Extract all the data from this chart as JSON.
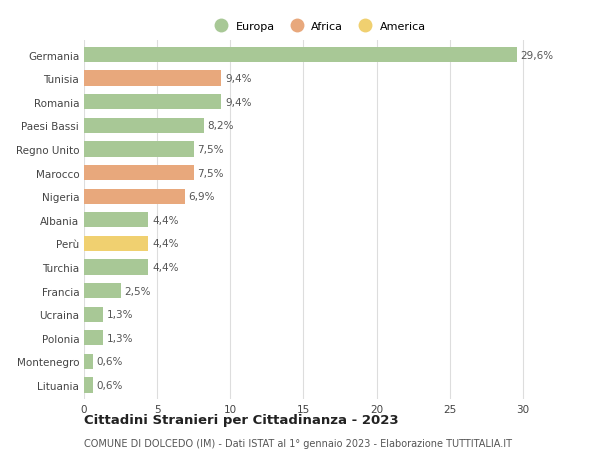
{
  "categories": [
    "Germania",
    "Tunisia",
    "Romania",
    "Paesi Bassi",
    "Regno Unito",
    "Marocco",
    "Nigeria",
    "Albania",
    "Perù",
    "Turchia",
    "Francia",
    "Ucraina",
    "Polonia",
    "Montenegro",
    "Lituania"
  ],
  "values": [
    29.6,
    9.4,
    9.4,
    8.2,
    7.5,
    7.5,
    6.9,
    4.4,
    4.4,
    4.4,
    2.5,
    1.3,
    1.3,
    0.6,
    0.6
  ],
  "labels": [
    "29,6%",
    "9,4%",
    "9,4%",
    "8,2%",
    "7,5%",
    "7,5%",
    "6,9%",
    "4,4%",
    "4,4%",
    "4,4%",
    "2,5%",
    "1,3%",
    "1,3%",
    "0,6%",
    "0,6%"
  ],
  "colors": [
    "#a8c896",
    "#e8a87c",
    "#a8c896",
    "#a8c896",
    "#a8c896",
    "#e8a87c",
    "#e8a87c",
    "#a8c896",
    "#f0d070",
    "#a8c896",
    "#a8c896",
    "#a8c896",
    "#a8c896",
    "#a8c896",
    "#a8c896"
  ],
  "legend_labels": [
    "Europa",
    "Africa",
    "America"
  ],
  "legend_colors": [
    "#a8c896",
    "#e8a87c",
    "#f0d070"
  ],
  "title": "Cittadini Stranieri per Cittadinanza - 2023",
  "subtitle": "COMUNE DI DOLCEDO (IM) - Dati ISTAT al 1° gennaio 2023 - Elaborazione TUTTITALIA.IT",
  "xlim": [
    0,
    32
  ],
  "xticks": [
    0,
    5,
    10,
    15,
    20,
    25,
    30
  ],
  "bar_height": 0.65,
  "figsize": [
    6.0,
    4.6
  ],
  "dpi": 100,
  "background_color": "#ffffff",
  "grid_color": "#dddddd",
  "label_fontsize": 7.5,
  "tick_fontsize": 7.5,
  "title_fontsize": 9.5,
  "subtitle_fontsize": 7.0,
  "value_label_color": "#555555"
}
